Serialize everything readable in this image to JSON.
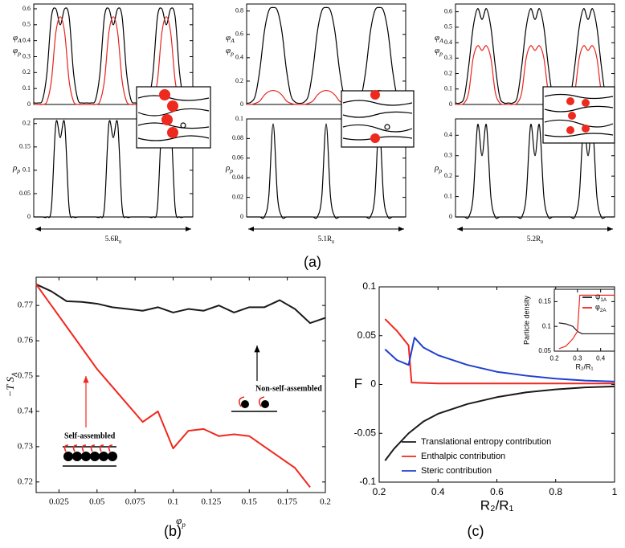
{
  "panel_labels": [
    "(a)",
    "(b)",
    "(c)"
  ],
  "chart_data": [
    {
      "type": "line",
      "x": [
        0,
        1,
        2,
        3,
        4,
        5,
        6,
        7,
        8,
        9,
        10,
        11,
        12,
        13,
        14,
        15,
        16,
        17,
        18,
        19,
        20,
        21,
        22,
        23,
        24,
        25,
        26,
        27,
        28,
        29,
        30,
        31,
        32,
        33,
        34,
        35,
        36
      ],
      "xlim": [
        0,
        36
      ],
      "ylim": [
        0,
        0.63
      ],
      "yticks": [
        0,
        0.1,
        0.2,
        0.3,
        0.4,
        0.5,
        0.6
      ],
      "series": [
        {
          "name": {
            "main": "φ",
            "sub": "A"
          },
          "color": "#000000",
          "values": [
            0.01,
            0.01,
            0.03,
            0.2,
            0.55,
            0.6,
            0.5,
            0.6,
            0.55,
            0.2,
            0.03,
            0.01,
            0.01,
            0.01,
            0.03,
            0.2,
            0.55,
            0.6,
            0.5,
            0.6,
            0.55,
            0.2,
            0.03,
            0.01,
            0.01,
            0.01,
            0.03,
            0.2,
            0.55,
            0.6,
            0.5,
            0.6,
            0.55,
            0.2,
            0.03,
            0.01,
            0.01
          ]
        },
        {
          "name": {
            "main": "φ",
            "sub": "p"
          },
          "color": "#e8231e",
          "values": [
            0,
            0,
            0,
            0.02,
            0.15,
            0.45,
            0.55,
            0.45,
            0.15,
            0.02,
            0,
            0,
            0,
            0,
            0,
            0.02,
            0.15,
            0.45,
            0.55,
            0.45,
            0.15,
            0.02,
            0,
            0,
            0,
            0,
            0,
            0.02,
            0.15,
            0.45,
            0.55,
            0.45,
            0.15,
            0.02,
            0,
            0,
            0
          ]
        }
      ]
    },
    {
      "type": "line",
      "x": [
        0,
        1,
        2,
        3,
        4,
        5,
        6,
        7,
        8,
        9,
        10,
        11,
        12,
        13,
        14,
        15,
        16,
        17,
        18,
        19,
        20,
        21,
        22,
        23,
        24,
        25,
        26,
        27,
        28,
        29,
        30,
        31,
        32,
        33,
        34,
        35,
        36
      ],
      "xlim": [
        0,
        36
      ],
      "ylim": [
        0,
        0.21
      ],
      "yticks": [
        0,
        0.05,
        0.1,
        0.15,
        0.2
      ],
      "ylabel": {
        "main": "ρ",
        "sub": "p"
      },
      "annotation": {
        "main": "5.6R",
        "sub": "0"
      },
      "series": [
        {
          "color": "#000000",
          "values": [
            0,
            0,
            0,
            0,
            0.02,
            0.2,
            0.17,
            0.2,
            0.02,
            0,
            0,
            0,
            0,
            0,
            0,
            0,
            0.02,
            0.2,
            0.17,
            0.2,
            0.02,
            0,
            0,
            0,
            0,
            0,
            0,
            0,
            0.02,
            0.2,
            0.17,
            0.2,
            0.02,
            0,
            0,
            0,
            0
          ]
        }
      ]
    },
    {
      "type": "line",
      "x": [
        0,
        1,
        2,
        3,
        4,
        5,
        6,
        7,
        8,
        9,
        10,
        11,
        12,
        13,
        14,
        15,
        16,
        17,
        18,
        19,
        20,
        21,
        22,
        23,
        24,
        25,
        26,
        27,
        28,
        29,
        30,
        31,
        32,
        33,
        34,
        35,
        36
      ],
      "xlim": [
        0,
        36
      ],
      "ylim": [
        0,
        0.86
      ],
      "yticks": [
        0,
        0.2,
        0.4,
        0.6,
        0.8
      ],
      "series": [
        {
          "name": {
            "main": "φ",
            "sub": "A"
          },
          "color": "#000000",
          "values": [
            0.01,
            0.02,
            0.08,
            0.3,
            0.62,
            0.8,
            0.83,
            0.8,
            0.62,
            0.3,
            0.08,
            0.02,
            0.01,
            0.02,
            0.08,
            0.3,
            0.62,
            0.8,
            0.83,
            0.8,
            0.62,
            0.3,
            0.08,
            0.02,
            0.01,
            0.02,
            0.08,
            0.3,
            0.62,
            0.8,
            0.83,
            0.8,
            0.62,
            0.3,
            0.08,
            0.02,
            0.01
          ]
        },
        {
          "name": {
            "main": "φ",
            "sub": "p"
          },
          "color": "#e8231e",
          "values": [
            0,
            0,
            0.01,
            0.03,
            0.08,
            0.11,
            0.12,
            0.11,
            0.08,
            0.03,
            0.01,
            0,
            0,
            0,
            0.01,
            0.03,
            0.08,
            0.11,
            0.12,
            0.11,
            0.08,
            0.03,
            0.01,
            0,
            0,
            0,
            0.01,
            0.03,
            0.08,
            0.11,
            0.12,
            0.11,
            0.08,
            0.03,
            0.01,
            0,
            0
          ]
        }
      ]
    },
    {
      "type": "line",
      "x": [
        0,
        1,
        2,
        3,
        4,
        5,
        6,
        7,
        8,
        9,
        10,
        11,
        12,
        13,
        14,
        15,
        16,
        17,
        18,
        19,
        20,
        21,
        22,
        23,
        24,
        25,
        26,
        27,
        28,
        29,
        30,
        31,
        32,
        33,
        34,
        35,
        36
      ],
      "xlim": [
        0,
        36
      ],
      "ylim": [
        0,
        0.1
      ],
      "yticks": [
        0,
        0.02,
        0.04,
        0.06,
        0.08,
        0.1
      ],
      "ylabel": {
        "main": "ρ",
        "sub": "p"
      },
      "annotation": {
        "main": "5.1R",
        "sub": "0"
      },
      "series": [
        {
          "color": "#000000",
          "values": [
            0,
            0,
            0,
            0,
            0,
            0.02,
            0.095,
            0.02,
            0,
            0,
            0,
            0,
            0,
            0,
            0,
            0,
            0,
            0.02,
            0.095,
            0.02,
            0,
            0,
            0,
            0,
            0,
            0,
            0,
            0,
            0,
            0.02,
            0.095,
            0.02,
            0,
            0,
            0,
            0,
            0
          ]
        }
      ]
    },
    {
      "type": "line",
      "x": [
        0,
        1,
        2,
        3,
        4,
        5,
        6,
        7,
        8,
        9,
        10,
        11,
        12,
        13,
        14,
        15,
        16,
        17,
        18,
        19,
        20,
        21,
        22,
        23,
        24,
        25,
        26,
        27,
        28,
        29,
        30,
        31,
        32,
        33,
        34,
        35,
        36
      ],
      "xlim": [
        0,
        36
      ],
      "ylim": [
        0,
        0.65
      ],
      "yticks": [
        0,
        0.1,
        0.2,
        0.3,
        0.4,
        0.5,
        0.6
      ],
      "series": [
        {
          "name": {
            "main": "φ",
            "sub": "A"
          },
          "color": "#000000",
          "values": [
            0.01,
            0.01,
            0.05,
            0.25,
            0.5,
            0.62,
            0.55,
            0.62,
            0.5,
            0.25,
            0.05,
            0.01,
            0.01,
            0.01,
            0.05,
            0.25,
            0.5,
            0.62,
            0.55,
            0.62,
            0.5,
            0.25,
            0.05,
            0.01,
            0.01,
            0.01,
            0.05,
            0.25,
            0.5,
            0.62,
            0.55,
            0.62,
            0.5,
            0.25,
            0.05,
            0.01,
            0.01
          ]
        },
        {
          "name": {
            "main": "φ",
            "sub": "p"
          },
          "color": "#e8231e",
          "values": [
            0,
            0,
            0.01,
            0.08,
            0.3,
            0.38,
            0.35,
            0.38,
            0.3,
            0.08,
            0.01,
            0,
            0,
            0,
            0.01,
            0.08,
            0.3,
            0.38,
            0.35,
            0.38,
            0.3,
            0.08,
            0.01,
            0,
            0,
            0,
            0.01,
            0.08,
            0.3,
            0.38,
            0.35,
            0.38,
            0.3,
            0.08,
            0.01,
            0,
            0
          ]
        }
      ]
    },
    {
      "type": "line",
      "x": [
        0,
        1,
        2,
        3,
        4,
        5,
        6,
        7,
        8,
        9,
        10,
        11,
        12,
        13,
        14,
        15,
        16,
        17,
        18,
        19,
        20,
        21,
        22,
        23,
        24,
        25,
        26,
        27,
        28,
        29,
        30,
        31,
        32,
        33,
        34,
        35,
        36
      ],
      "xlim": [
        0,
        36
      ],
      "ylim": [
        0,
        0.48
      ],
      "yticks": [
        0,
        0.1,
        0.2,
        0.3,
        0.4
      ],
      "ylabel": {
        "main": "ρ",
        "sub": "p"
      },
      "annotation": {
        "main": "5.2R",
        "sub": "0"
      },
      "series": [
        {
          "color": "#000000",
          "values": [
            0,
            0,
            0,
            0,
            0.1,
            0.45,
            0.3,
            0.45,
            0.1,
            0,
            0,
            0,
            0,
            0,
            0,
            0,
            0.1,
            0.45,
            0.3,
            0.45,
            0.1,
            0,
            0,
            0,
            0,
            0,
            0,
            0,
            0.1,
            0.45,
            0.3,
            0.45,
            0.1,
            0,
            0,
            0,
            0
          ]
        }
      ]
    },
    {
      "type": "line",
      "x": [
        0.01,
        0.02,
        0.03,
        0.04,
        0.05,
        0.06,
        0.07,
        0.08,
        0.09,
        0.1,
        0.11,
        0.12,
        0.13,
        0.14,
        0.15,
        0.16,
        0.17,
        0.18,
        0.19,
        0.2
      ],
      "xlim": [
        0.01,
        0.2
      ],
      "xticks": [
        0.025,
        0.05,
        0.075,
        0.1,
        0.125,
        0.15,
        0.175,
        0.2
      ],
      "ylim": [
        0.717,
        0.778
      ],
      "yticks": [
        0.72,
        0.73,
        0.74,
        0.75,
        0.76,
        0.77
      ],
      "xlabel": {
        "main": "φ",
        "sub": "p"
      },
      "ylabel": {
        "main": "−T S",
        "sub": "A"
      },
      "annotations": [
        "Self-assembled",
        "Non-self-assembled"
      ],
      "series": [
        {
          "color": "#1a1a1a",
          "values": [
            0.776,
            0.774,
            0.7712,
            0.771,
            0.7705,
            0.7695,
            0.769,
            0.7685,
            0.7695,
            0.768,
            0.769,
            0.7685,
            0.77,
            0.768,
            0.7695,
            0.7695,
            0.7715,
            0.769,
            0.765,
            0.7665
          ]
        },
        {
          "color": "#f0281e",
          "values": [
            0.776,
            0.77,
            0.764,
            0.758,
            0.752,
            0.747,
            0.742,
            0.737,
            0.74,
            0.7295,
            0.7345,
            0.735,
            0.733,
            0.7335,
            0.733,
            0.73,
            0.727,
            0.724,
            0.7185,
            null
          ]
        }
      ]
    },
    {
      "type": "line",
      "xlim": [
        0.2,
        1
      ],
      "xticks": [
        0.2,
        0.4,
        0.6,
        0.8,
        1
      ],
      "ylim": [
        -0.1,
        0.1
      ],
      "yticks": [
        -0.1,
        -0.05,
        0,
        0.05,
        0.1
      ],
      "xlabel": "R₂/R₁",
      "ylabel": "F",
      "legend": "lower left",
      "series": [
        {
          "name": "Translational entropy contribution",
          "color": "#1a1a1a",
          "x": [
            0.22,
            0.25,
            0.3,
            0.35,
            0.4,
            0.5,
            0.6,
            0.7,
            0.8,
            0.9,
            1
          ],
          "values": [
            -0.078,
            -0.066,
            -0.05,
            -0.038,
            -0.03,
            -0.02,
            -0.013,
            -0.008,
            -0.005,
            -0.003,
            -0.002
          ]
        },
        {
          "name": "Enthalpic contribution",
          "color": "#f0281e",
          "x": [
            0.22,
            0.26,
            0.3,
            0.31,
            0.4,
            0.6,
            0.8,
            1
          ],
          "values": [
            0.067,
            0.055,
            0.04,
            0.002,
            0.001,
            0.001,
            0.001,
            0.001
          ]
        },
        {
          "name": "Steric contribution",
          "color": "#1f3fd1",
          "x": [
            0.22,
            0.26,
            0.3,
            0.32,
            0.35,
            0.4,
            0.5,
            0.6,
            0.7,
            0.8,
            0.9,
            1
          ],
          "values": [
            0.036,
            0.025,
            0.02,
            0.048,
            0.038,
            0.03,
            0.02,
            0.013,
            0.009,
            0.006,
            0.004,
            0.003
          ]
        }
      ]
    },
    {
      "type": "line",
      "xlim": [
        0.2,
        0.46
      ],
      "xticks": [
        0.2,
        0.3,
        0.4
      ],
      "ylim": [
        0.05,
        0.175
      ],
      "yticks": [
        0.05,
        0.1,
        0.15
      ],
      "xlabel": "R₂/R₁",
      "ylabel": "Particle density",
      "legend": "upper right",
      "series": [
        {
          "name": {
            "main": "ψ",
            "sub": "1A"
          },
          "color": "#1a1a1a",
          "x": [
            0.22,
            0.25,
            0.28,
            0.3,
            0.32,
            0.46
          ],
          "values": [
            0.107,
            0.105,
            0.1,
            0.09,
            0.085,
            0.085
          ]
        },
        {
          "name": {
            "main": "φ",
            "sub": "2A"
          },
          "color": "#f0281e",
          "x": [
            0.22,
            0.25,
            0.28,
            0.3,
            0.31,
            0.46
          ],
          "values": [
            0.055,
            0.06,
            0.075,
            0.09,
            0.163,
            0.163
          ]
        }
      ]
    }
  ]
}
